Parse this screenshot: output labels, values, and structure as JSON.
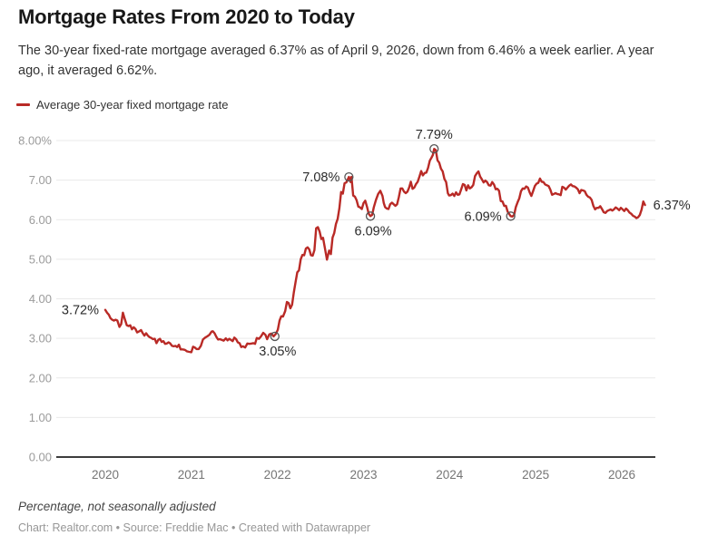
{
  "header": {
    "title": "Mortgage Rates From 2020 to Today",
    "subtitle": "The 30-year fixed-rate mortgage averaged 6.37% as of April 9, 2026, down from 6.46% a week earlier. A year ago, it averaged 6.62%."
  },
  "legend": {
    "series_label": "Average 30-year fixed mortgage rate"
  },
  "colors": {
    "line": "#b92a26",
    "grid": "#e9e9e9",
    "baseline": "#3d3d3d",
    "y_tick": "#9b9b9b",
    "x_tick": "#757575",
    "annotation": "#2b2b2b",
    "marker_stroke": "#555555"
  },
  "footer": {
    "note": "Percentage, not seasonally adjusted",
    "credit": "Chart: Realtor.com • Source: Freddie Mac • Created with Datawrapper"
  },
  "chart_data": {
    "type": "line",
    "title": "Mortgage Rates From 2020 to Today",
    "series_name": "Average 30-year fixed mortgage rate",
    "xlabel": "",
    "ylabel": "Percentage, not seasonally adjusted",
    "x_unit": "decimal_year",
    "ylim": [
      0,
      8
    ],
    "xlim": [
      2019.43,
      2026.39
    ],
    "grid": "horizontal",
    "legend_position": "top-left",
    "y_ticks": [
      {
        "value": 8,
        "label": "8.00%"
      },
      {
        "value": 7,
        "label": "7.00"
      },
      {
        "value": 6,
        "label": "6.00"
      },
      {
        "value": 5,
        "label": "5.00"
      },
      {
        "value": 4,
        "label": "4.00"
      },
      {
        "value": 3,
        "label": "3.00"
      },
      {
        "value": 2,
        "label": "2.00"
      },
      {
        "value": 1,
        "label": "1.00"
      },
      {
        "value": 0,
        "label": "0.00"
      }
    ],
    "x_ticks": [
      {
        "value": 2020,
        "label": "2020"
      },
      {
        "value": 2021,
        "label": "2021"
      },
      {
        "value": 2022,
        "label": "2022"
      },
      {
        "value": 2023,
        "label": "2023"
      },
      {
        "value": 2024,
        "label": "2024"
      },
      {
        "value": 2025,
        "label": "2025"
      },
      {
        "value": 2026,
        "label": "2026"
      }
    ],
    "annotations": [
      {
        "label": "3.72%",
        "x": 2020.0,
        "value": 3.72,
        "placement": "left",
        "marker": false
      },
      {
        "label": "3.05%",
        "x": 2021.97,
        "value": 3.05,
        "placement": "below",
        "marker": true
      },
      {
        "label": "7.08%",
        "x": 2022.83,
        "value": 7.08,
        "placement": "left",
        "marker": true
      },
      {
        "label": "6.09%",
        "x": 2023.08,
        "value": 6.09,
        "placement": "below",
        "marker": true
      },
      {
        "label": "7.79%",
        "x": 2023.82,
        "value": 7.79,
        "placement": "above",
        "marker": true
      },
      {
        "label": "6.09%",
        "x": 2024.71,
        "value": 6.09,
        "placement": "left",
        "marker": true
      },
      {
        "label": "6.37%",
        "x": 2026.27,
        "value": 6.37,
        "placement": "right",
        "marker": false
      }
    ],
    "points": [
      [
        2020.0,
        3.72
      ],
      [
        2020.02,
        3.65
      ],
      [
        2020.04,
        3.6
      ],
      [
        2020.06,
        3.51
      ],
      [
        2020.08,
        3.47
      ],
      [
        2020.1,
        3.45
      ],
      [
        2020.12,
        3.47
      ],
      [
        2020.14,
        3.45
      ],
      [
        2020.165,
        3.29
      ],
      [
        2020.185,
        3.36
      ],
      [
        2020.205,
        3.65
      ],
      [
        2020.225,
        3.5
      ],
      [
        2020.25,
        3.33
      ],
      [
        2020.27,
        3.31
      ],
      [
        2020.29,
        3.33
      ],
      [
        2020.31,
        3.23
      ],
      [
        2020.33,
        3.28
      ],
      [
        2020.35,
        3.24
      ],
      [
        2020.37,
        3.15
      ],
      [
        2020.395,
        3.18
      ],
      [
        2020.415,
        3.21
      ],
      [
        2020.435,
        3.13
      ],
      [
        2020.455,
        3.07
      ],
      [
        2020.475,
        3.13
      ],
      [
        2020.495,
        3.07
      ],
      [
        2020.515,
        3.03
      ],
      [
        2020.535,
        3.01
      ],
      [
        2020.555,
        2.98
      ],
      [
        2020.575,
        2.99
      ],
      [
        2020.595,
        2.88
      ],
      [
        2020.615,
        2.96
      ],
      [
        2020.635,
        2.99
      ],
      [
        2020.655,
        2.91
      ],
      [
        2020.675,
        2.93
      ],
      [
        2020.695,
        2.86
      ],
      [
        2020.715,
        2.87
      ],
      [
        2020.735,
        2.9
      ],
      [
        2020.755,
        2.87
      ],
      [
        2020.775,
        2.81
      ],
      [
        2020.795,
        2.8
      ],
      [
        2020.815,
        2.81
      ],
      [
        2020.835,
        2.78
      ],
      [
        2020.855,
        2.84
      ],
      [
        2020.875,
        2.72
      ],
      [
        2020.9,
        2.72
      ],
      [
        2020.925,
        2.71
      ],
      [
        2020.95,
        2.67
      ],
      [
        2020.975,
        2.66
      ],
      [
        2021.0,
        2.65
      ],
      [
        2021.02,
        2.79
      ],
      [
        2021.04,
        2.77
      ],
      [
        2021.06,
        2.73
      ],
      [
        2021.085,
        2.73
      ],
      [
        2021.11,
        2.81
      ],
      [
        2021.135,
        2.97
      ],
      [
        2021.16,
        3.02
      ],
      [
        2021.185,
        3.05
      ],
      [
        2021.21,
        3.09
      ],
      [
        2021.235,
        3.17
      ],
      [
        2021.25,
        3.18
      ],
      [
        2021.27,
        3.13
      ],
      [
        2021.29,
        3.04
      ],
      [
        2021.31,
        2.97
      ],
      [
        2021.33,
        2.98
      ],
      [
        2021.355,
        2.96
      ],
      [
        2021.375,
        2.94
      ],
      [
        2021.4,
        3.0
      ],
      [
        2021.42,
        2.95
      ],
      [
        2021.44,
        2.99
      ],
      [
        2021.46,
        2.96
      ],
      [
        2021.48,
        2.93
      ],
      [
        2021.5,
        3.02
      ],
      [
        2021.52,
        2.98
      ],
      [
        2021.54,
        2.9
      ],
      [
        2021.56,
        2.88
      ],
      [
        2021.58,
        2.78
      ],
      [
        2021.6,
        2.8
      ],
      [
        2021.625,
        2.77
      ],
      [
        2021.65,
        2.87
      ],
      [
        2021.675,
        2.86
      ],
      [
        2021.7,
        2.87
      ],
      [
        2021.72,
        2.88
      ],
      [
        2021.74,
        2.86
      ],
      [
        2021.76,
        3.01
      ],
      [
        2021.785,
        2.99
      ],
      [
        2021.81,
        3.05
      ],
      [
        2021.835,
        3.14
      ],
      [
        2021.86,
        3.09
      ],
      [
        2021.88,
        2.98
      ],
      [
        2021.905,
        3.1
      ],
      [
        2021.93,
        3.12
      ],
      [
        2021.955,
        3.05
      ],
      [
        2021.98,
        3.11
      ],
      [
        2022.005,
        3.22
      ],
      [
        2022.025,
        3.45
      ],
      [
        2022.045,
        3.56
      ],
      [
        2022.065,
        3.55
      ],
      [
        2022.09,
        3.69
      ],
      [
        2022.11,
        3.92
      ],
      [
        2022.13,
        3.89
      ],
      [
        2022.15,
        3.76
      ],
      [
        2022.17,
        3.85
      ],
      [
        2022.19,
        4.16
      ],
      [
        2022.21,
        4.42
      ],
      [
        2022.23,
        4.67
      ],
      [
        2022.25,
        4.72
      ],
      [
        2022.27,
        5.0
      ],
      [
        2022.29,
        5.11
      ],
      [
        2022.31,
        5.1
      ],
      [
        2022.33,
        5.27
      ],
      [
        2022.35,
        5.3
      ],
      [
        2022.37,
        5.25
      ],
      [
        2022.39,
        5.1
      ],
      [
        2022.41,
        5.09
      ],
      [
        2022.43,
        5.23
      ],
      [
        2022.45,
        5.78
      ],
      [
        2022.47,
        5.81
      ],
      [
        2022.49,
        5.7
      ],
      [
        2022.51,
        5.51
      ],
      [
        2022.53,
        5.54
      ],
      [
        2022.55,
        5.3
      ],
      [
        2022.575,
        4.99
      ],
      [
        2022.6,
        5.22
      ],
      [
        2022.62,
        5.13
      ],
      [
        2022.64,
        5.55
      ],
      [
        2022.66,
        5.66
      ],
      [
        2022.68,
        5.89
      ],
      [
        2022.7,
        6.02
      ],
      [
        2022.72,
        6.29
      ],
      [
        2022.74,
        6.7
      ],
      [
        2022.76,
        6.66
      ],
      [
        2022.78,
        6.92
      ],
      [
        2022.8,
        6.94
      ],
      [
        2022.83,
        7.08
      ],
      [
        2022.85,
        6.95
      ],
      [
        2022.86,
        7.08
      ],
      [
        2022.88,
        6.61
      ],
      [
        2022.9,
        6.58
      ],
      [
        2022.92,
        6.49
      ],
      [
        2022.94,
        6.33
      ],
      [
        2022.96,
        6.31
      ],
      [
        2022.98,
        6.27
      ],
      [
        2023.0,
        6.42
      ],
      [
        2023.02,
        6.48
      ],
      [
        2023.04,
        6.33
      ],
      [
        2023.06,
        6.15
      ],
      [
        2023.08,
        6.09
      ],
      [
        2023.1,
        6.12
      ],
      [
        2023.12,
        6.32
      ],
      [
        2023.145,
        6.5
      ],
      [
        2023.17,
        6.65
      ],
      [
        2023.195,
        6.73
      ],
      [
        2023.22,
        6.6
      ],
      [
        2023.235,
        6.42
      ],
      [
        2023.25,
        6.32
      ],
      [
        2023.27,
        6.28
      ],
      [
        2023.29,
        6.27
      ],
      [
        2023.31,
        6.39
      ],
      [
        2023.33,
        6.43
      ],
      [
        2023.35,
        6.39
      ],
      [
        2023.37,
        6.35
      ],
      [
        2023.39,
        6.39
      ],
      [
        2023.41,
        6.57
      ],
      [
        2023.43,
        6.79
      ],
      [
        2023.45,
        6.79
      ],
      [
        2023.47,
        6.71
      ],
      [
        2023.49,
        6.67
      ],
      [
        2023.51,
        6.71
      ],
      [
        2023.53,
        6.81
      ],
      [
        2023.55,
        6.96
      ],
      [
        2023.57,
        6.78
      ],
      [
        2023.59,
        6.81
      ],
      [
        2023.61,
        6.9
      ],
      [
        2023.63,
        6.96
      ],
      [
        2023.65,
        7.09
      ],
      [
        2023.67,
        7.23
      ],
      [
        2023.69,
        7.12
      ],
      [
        2023.71,
        7.18
      ],
      [
        2023.73,
        7.19
      ],
      [
        2023.75,
        7.31
      ],
      [
        2023.77,
        7.49
      ],
      [
        2023.79,
        7.57
      ],
      [
        2023.805,
        7.63
      ],
      [
        2023.82,
        7.79
      ],
      [
        2023.84,
        7.76
      ],
      [
        2023.86,
        7.5
      ],
      [
        2023.88,
        7.44
      ],
      [
        2023.9,
        7.29
      ],
      [
        2023.92,
        7.22
      ],
      [
        2023.94,
        7.03
      ],
      [
        2023.96,
        6.95
      ],
      [
        2023.98,
        6.67
      ],
      [
        2023.995,
        6.61
      ],
      [
        2024.015,
        6.62
      ],
      [
        2024.035,
        6.66
      ],
      [
        2024.055,
        6.6
      ],
      [
        2024.075,
        6.69
      ],
      [
        2024.095,
        6.63
      ],
      [
        2024.115,
        6.64
      ],
      [
        2024.135,
        6.77
      ],
      [
        2024.155,
        6.9
      ],
      [
        2024.175,
        6.88
      ],
      [
        2024.195,
        6.74
      ],
      [
        2024.215,
        6.87
      ],
      [
        2024.235,
        6.79
      ],
      [
        2024.255,
        6.82
      ],
      [
        2024.275,
        6.88
      ],
      [
        2024.295,
        7.1
      ],
      [
        2024.315,
        7.17
      ],
      [
        2024.335,
        7.22
      ],
      [
        2024.355,
        7.09
      ],
      [
        2024.375,
        7.02
      ],
      [
        2024.395,
        6.94
      ],
      [
        2024.415,
        6.99
      ],
      [
        2024.435,
        6.95
      ],
      [
        2024.455,
        6.87
      ],
      [
        2024.475,
        6.86
      ],
      [
        2024.495,
        6.95
      ],
      [
        2024.515,
        6.89
      ],
      [
        2024.535,
        6.77
      ],
      [
        2024.555,
        6.78
      ],
      [
        2024.575,
        6.73
      ],
      [
        2024.595,
        6.47
      ],
      [
        2024.615,
        6.46
      ],
      [
        2024.635,
        6.35
      ],
      [
        2024.655,
        6.35
      ],
      [
        2024.675,
        6.2
      ],
      [
        2024.71,
        6.09
      ],
      [
        2024.73,
        6.08
      ],
      [
        2024.75,
        6.12
      ],
      [
        2024.77,
        6.32
      ],
      [
        2024.79,
        6.44
      ],
      [
        2024.81,
        6.54
      ],
      [
        2024.83,
        6.72
      ],
      [
        2024.85,
        6.79
      ],
      [
        2024.87,
        6.78
      ],
      [
        2024.89,
        6.84
      ],
      [
        2024.91,
        6.81
      ],
      [
        2024.93,
        6.69
      ],
      [
        2024.95,
        6.6
      ],
      [
        2024.97,
        6.72
      ],
      [
        2024.99,
        6.85
      ],
      [
        2025.01,
        6.91
      ],
      [
        2025.03,
        6.93
      ],
      [
        2025.05,
        7.04
      ],
      [
        2025.07,
        6.96
      ],
      [
        2025.09,
        6.95
      ],
      [
        2025.11,
        6.89
      ],
      [
        2025.13,
        6.87
      ],
      [
        2025.15,
        6.85
      ],
      [
        2025.17,
        6.76
      ],
      [
        2025.19,
        6.63
      ],
      [
        2025.21,
        6.65
      ],
      [
        2025.23,
        6.67
      ],
      [
        2025.25,
        6.65
      ],
      [
        2025.27,
        6.64
      ],
      [
        2025.29,
        6.62
      ],
      [
        2025.31,
        6.83
      ],
      [
        2025.33,
        6.81
      ],
      [
        2025.35,
        6.76
      ],
      [
        2025.37,
        6.81
      ],
      [
        2025.39,
        6.86
      ],
      [
        2025.41,
        6.89
      ],
      [
        2025.43,
        6.85
      ],
      [
        2025.45,
        6.84
      ],
      [
        2025.47,
        6.81
      ],
      [
        2025.49,
        6.77
      ],
      [
        2025.51,
        6.67
      ],
      [
        2025.53,
        6.75
      ],
      [
        2025.55,
        6.74
      ],
      [
        2025.57,
        6.72
      ],
      [
        2025.59,
        6.63
      ],
      [
        2025.61,
        6.58
      ],
      [
        2025.63,
        6.56
      ],
      [
        2025.65,
        6.5
      ],
      [
        2025.67,
        6.35
      ],
      [
        2025.69,
        6.26
      ],
      [
        2025.71,
        6.3
      ],
      [
        2025.73,
        6.3
      ],
      [
        2025.75,
        6.34
      ],
      [
        2025.77,
        6.27
      ],
      [
        2025.79,
        6.19
      ],
      [
        2025.81,
        6.17
      ],
      [
        2025.83,
        6.22
      ],
      [
        2025.85,
        6.24
      ],
      [
        2025.87,
        6.26
      ],
      [
        2025.89,
        6.23
      ],
      [
        2025.91,
        6.26
      ],
      [
        2025.93,
        6.31
      ],
      [
        2025.95,
        6.28
      ],
      [
        2025.97,
        6.24
      ],
      [
        2025.99,
        6.3
      ],
      [
        2026.01,
        6.26
      ],
      [
        2026.03,
        6.22
      ],
      [
        2026.05,
        6.28
      ],
      [
        2026.07,
        6.24
      ],
      [
        2026.09,
        6.18
      ],
      [
        2026.11,
        6.15
      ],
      [
        2026.13,
        6.1
      ],
      [
        2026.15,
        6.08
      ],
      [
        2026.17,
        6.04
      ],
      [
        2026.19,
        6.06
      ],
      [
        2026.21,
        6.12
      ],
      [
        2026.23,
        6.25
      ],
      [
        2026.25,
        6.46
      ],
      [
        2026.27,
        6.37
      ]
    ]
  }
}
